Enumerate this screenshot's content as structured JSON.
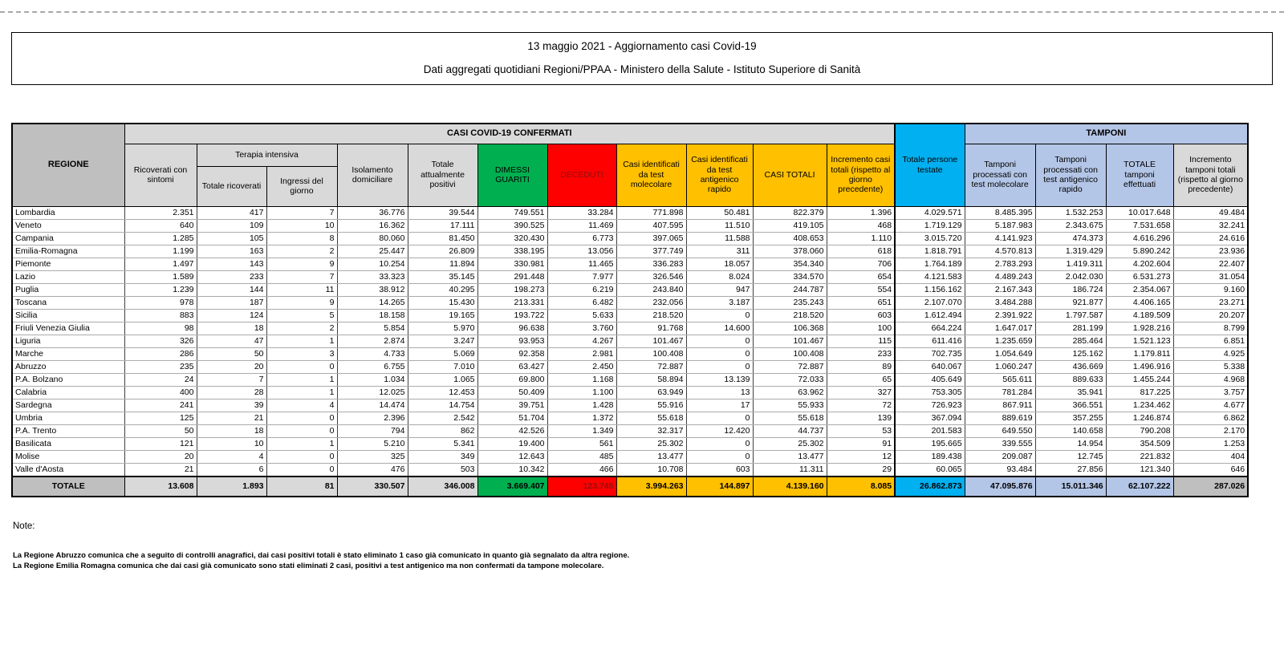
{
  "header": {
    "title": "13 maggio 2021 - Aggiornamento casi Covid-19",
    "subtitle": "Dati aggregati quotidiani Regioni/PPAA - Ministero della Salute - Istituto Superiore di Sanità"
  },
  "colors": {
    "green": "#00B050",
    "red": "#FF0000",
    "yellow": "#FFC000",
    "cyan": "#00B0F0",
    "blue": "#B4C6E7",
    "hdr_gray": "#D9D9D9",
    "dark_gray": "#BFBFBF"
  },
  "table": {
    "group_headers": {
      "regione": "REGIONE",
      "casi": "CASI COVID-19 CONFERMATI",
      "terapia": "Terapia intensiva",
      "tamponi": "TAMPONI"
    },
    "columns": [
      "Ricoverati con sintomi",
      "Totale ricoverati",
      "Ingressi del giorno",
      "Isolamento domiciliare",
      "Totale attualmente positivi",
      "DIMESSI GUARITI",
      "DECEDUTI",
      "Casi identificati da test molecolare",
      "Casi identificati da test antigenico rapido",
      "CASI TOTALI",
      "Incremento casi totali (rispetto al giorno precedente)",
      "Totale persone testate",
      "Tamponi processati con test molecolare",
      "Tamponi processati con test antigenico rapido",
      "TOTALE tamponi effettuati",
      "Incremento tamponi totali (rispetto al giorno precedente)"
    ],
    "rows": [
      {
        "name": "Lombardia",
        "values": [
          "2.351",
          "417",
          "7",
          "36.776",
          "39.544",
          "749.551",
          "33.284",
          "771.898",
          "50.481",
          "822.379",
          "1.396",
          "4.029.571",
          "8.485.395",
          "1.532.253",
          "10.017.648",
          "49.484"
        ]
      },
      {
        "name": "Veneto",
        "values": [
          "640",
          "109",
          "10",
          "16.362",
          "17.111",
          "390.525",
          "11.469",
          "407.595",
          "11.510",
          "419.105",
          "468",
          "1.719.129",
          "5.187.983",
          "2.343.675",
          "7.531.658",
          "32.241"
        ]
      },
      {
        "name": "Campania",
        "values": [
          "1.285",
          "105",
          "8",
          "80.060",
          "81.450",
          "320.430",
          "6.773",
          "397.065",
          "11.588",
          "408.653",
          "1.110",
          "3.015.720",
          "4.141.923",
          "474.373",
          "4.616.296",
          "24.616"
        ]
      },
      {
        "name": "Emilia-Romagna",
        "values": [
          "1.199",
          "163",
          "2",
          "25.447",
          "26.809",
          "338.195",
          "13.056",
          "377.749",
          "311",
          "378.060",
          "618",
          "1.818.791",
          "4.570.813",
          "1.319.429",
          "5.890.242",
          "23.936"
        ]
      },
      {
        "name": "Piemonte",
        "values": [
          "1.497",
          "143",
          "9",
          "10.254",
          "11.894",
          "330.981",
          "11.465",
          "336.283",
          "18.057",
          "354.340",
          "706",
          "1.764.189",
          "2.783.293",
          "1.419.311",
          "4.202.604",
          "22.407"
        ]
      },
      {
        "name": "Lazio",
        "values": [
          "1.589",
          "233",
          "7",
          "33.323",
          "35.145",
          "291.448",
          "7.977",
          "326.546",
          "8.024",
          "334.570",
          "654",
          "4.121.583",
          "4.489.243",
          "2.042.030",
          "6.531.273",
          "31.054"
        ]
      },
      {
        "name": "Puglia",
        "values": [
          "1.239",
          "144",
          "11",
          "38.912",
          "40.295",
          "198.273",
          "6.219",
          "243.840",
          "947",
          "244.787",
          "554",
          "1.156.162",
          "2.167.343",
          "186.724",
          "2.354.067",
          "9.160"
        ]
      },
      {
        "name": "Toscana",
        "values": [
          "978",
          "187",
          "9",
          "14.265",
          "15.430",
          "213.331",
          "6.482",
          "232.056",
          "3.187",
          "235.243",
          "651",
          "2.107.070",
          "3.484.288",
          "921.877",
          "4.406.165",
          "23.271"
        ]
      },
      {
        "name": "Sicilia",
        "values": [
          "883",
          "124",
          "5",
          "18.158",
          "19.165",
          "193.722",
          "5.633",
          "218.520",
          "0",
          "218.520",
          "603",
          "1.612.494",
          "2.391.922",
          "1.797.587",
          "4.189.509",
          "20.207"
        ]
      },
      {
        "name": "Friuli Venezia Giulia",
        "values": [
          "98",
          "18",
          "2",
          "5.854",
          "5.970",
          "96.638",
          "3.760",
          "91.768",
          "14.600",
          "106.368",
          "100",
          "664.224",
          "1.647.017",
          "281.199",
          "1.928.216",
          "8.799"
        ]
      },
      {
        "name": "Liguria",
        "values": [
          "326",
          "47",
          "1",
          "2.874",
          "3.247",
          "93.953",
          "4.267",
          "101.467",
          "0",
          "101.467",
          "115",
          "611.416",
          "1.235.659",
          "285.464",
          "1.521.123",
          "6.851"
        ]
      },
      {
        "name": "Marche",
        "values": [
          "286",
          "50",
          "3",
          "4.733",
          "5.069",
          "92.358",
          "2.981",
          "100.408",
          "0",
          "100.408",
          "233",
          "702.735",
          "1.054.649",
          "125.162",
          "1.179.811",
          "4.925"
        ]
      },
      {
        "name": "Abruzzo",
        "values": [
          "235",
          "20",
          "0",
          "6.755",
          "7.010",
          "63.427",
          "2.450",
          "72.887",
          "0",
          "72.887",
          "89",
          "640.067",
          "1.060.247",
          "436.669",
          "1.496.916",
          "5.338"
        ]
      },
      {
        "name": "P.A. Bolzano",
        "values": [
          "24",
          "7",
          "1",
          "1.034",
          "1.065",
          "69.800",
          "1.168",
          "58.894",
          "13.139",
          "72.033",
          "65",
          "405.649",
          "565.611",
          "889.633",
          "1.455.244",
          "4.968"
        ]
      },
      {
        "name": "Calabria",
        "values": [
          "400",
          "28",
          "1",
          "12.025",
          "12.453",
          "50.409",
          "1.100",
          "63.949",
          "13",
          "63.962",
          "327",
          "753.305",
          "781.284",
          "35.941",
          "817.225",
          "3.757"
        ]
      },
      {
        "name": "Sardegna",
        "values": [
          "241",
          "39",
          "4",
          "14.474",
          "14.754",
          "39.751",
          "1.428",
          "55.916",
          "17",
          "55.933",
          "72",
          "726.923",
          "867.911",
          "366.551",
          "1.234.462",
          "4.677"
        ]
      },
      {
        "name": "Umbria",
        "values": [
          "125",
          "21",
          "0",
          "2.396",
          "2.542",
          "51.704",
          "1.372",
          "55.618",
          "0",
          "55.618",
          "139",
          "367.094",
          "889.619",
          "357.255",
          "1.246.874",
          "6.862"
        ]
      },
      {
        "name": "P.A. Trento",
        "values": [
          "50",
          "18",
          "0",
          "794",
          "862",
          "42.526",
          "1.349",
          "32.317",
          "12.420",
          "44.737",
          "53",
          "201.583",
          "649.550",
          "140.658",
          "790.208",
          "2.170"
        ]
      },
      {
        "name": "Basilicata",
        "values": [
          "121",
          "10",
          "1",
          "5.210",
          "5.341",
          "19.400",
          "561",
          "25.302",
          "0",
          "25.302",
          "91",
          "195.665",
          "339.555",
          "14.954",
          "354.509",
          "1.253"
        ]
      },
      {
        "name": "Molise",
        "values": [
          "20",
          "4",
          "0",
          "325",
          "349",
          "12.643",
          "485",
          "13.477",
          "0",
          "13.477",
          "12",
          "189.438",
          "209.087",
          "12.745",
          "221.832",
          "404"
        ]
      },
      {
        "name": "Valle d'Aosta",
        "values": [
          "21",
          "6",
          "0",
          "476",
          "503",
          "10.342",
          "466",
          "10.708",
          "603",
          "11.311",
          "29",
          "60.065",
          "93.484",
          "27.856",
          "121.340",
          "646"
        ]
      }
    ],
    "total": {
      "label": "TOTALE",
      "values": [
        "13.608",
        "1.893",
        "81",
        "330.507",
        "346.008",
        "3.669.407",
        "123.745",
        "3.994.263",
        "144.897",
        "4.139.160",
        "8.085",
        "26.862.873",
        "47.095.876",
        "15.011.346",
        "62.107.222",
        "287.026"
      ]
    }
  },
  "notes": {
    "heading": "Note:",
    "line1": "La Regione Abruzzo comunica che a seguito di controlli anagrafici, dai casi positivi totali è stato eliminato 1 caso già comunicato in quanto già segnalato da altra regione.",
    "line2": "La Regione Emilia Romagna comunica che dai casi già comunicato sono stati eliminati 2 casi, positivi a test antigenico ma non confermati da tampone molecolare."
  }
}
